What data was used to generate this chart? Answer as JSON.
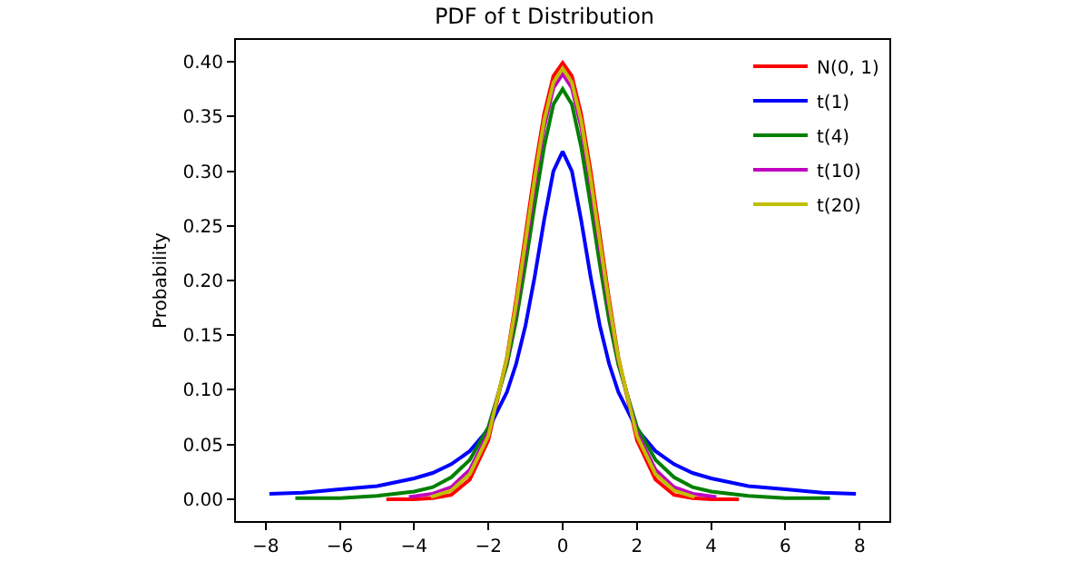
{
  "chart_data": {
    "type": "line",
    "title": "PDF of t Distribution",
    "ylabel": "Probability",
    "xlim": [
      -8.8,
      8.8
    ],
    "xticks": [
      {
        "value": -8,
        "label": "−8"
      },
      {
        "value": -6,
        "label": "−6"
      },
      {
        "value": -4,
        "label": "−4"
      },
      {
        "value": -2,
        "label": "−2"
      },
      0,
      2,
      4,
      6,
      8
    ],
    "ylim": [
      -0.02,
      0.42
    ],
    "yticks": [
      {
        "value": 0,
        "label": "0.00"
      },
      {
        "value": 0.05,
        "label": "0.05"
      },
      {
        "value": 0.1,
        "label": "0.10"
      },
      {
        "value": 0.15,
        "label": "0.15"
      },
      {
        "value": 0.2,
        "label": "0.20"
      },
      {
        "value": 0.25,
        "label": "0.25"
      },
      {
        "value": 0.3,
        "label": "0.30"
      },
      {
        "value": 0.35,
        "label": "0.35"
      },
      {
        "value": 0.4,
        "label": "0.40"
      }
    ],
    "grid": false,
    "legend": "top right",
    "marker": "none",
    "line_style": "solid",
    "series": [
      {
        "name": "N(0, 1)",
        "color": "#ff0000",
        "x": [
          -4.75,
          -4,
          -3.5,
          -3,
          -2.5,
          -2,
          -1.5,
          -1.25,
          -1,
          -0.75,
          -0.5,
          -0.25,
          0,
          0.25,
          0.5,
          0.75,
          1,
          1.25,
          1.5,
          2,
          2.5,
          3,
          3.5,
          4,
          4.75
        ],
        "values": [
          0,
          0,
          0.001,
          0.004,
          0.018,
          0.054,
          0.13,
          0.183,
          0.242,
          0.301,
          0.352,
          0.387,
          0.399,
          0.387,
          0.352,
          0.301,
          0.242,
          0.183,
          0.13,
          0.054,
          0.018,
          0.004,
          0.001,
          0,
          0
        ]
      },
      {
        "name": "t(1)",
        "color": "#0000ff",
        "x": [
          -7.9,
          -7,
          -6,
          -5,
          -4,
          -3.5,
          -3,
          -2.5,
          -2,
          -1.5,
          -1.25,
          -1,
          -0.75,
          -0.5,
          -0.25,
          0,
          0.25,
          0.5,
          0.75,
          1,
          1.25,
          1.5,
          2,
          2.5,
          3,
          3.5,
          4,
          5,
          6,
          7,
          7.9
        ],
        "values": [
          0.005,
          0.006,
          0.009,
          0.012,
          0.019,
          0.024,
          0.032,
          0.044,
          0.064,
          0.098,
          0.124,
          0.159,
          0.204,
          0.255,
          0.3,
          0.318,
          0.3,
          0.255,
          0.204,
          0.159,
          0.124,
          0.098,
          0.064,
          0.044,
          0.032,
          0.024,
          0.019,
          0.012,
          0.009,
          0.006,
          0.005
        ]
      },
      {
        "name": "t(4)",
        "color": "#008000",
        "x": [
          -7.2,
          -6,
          -5,
          -4,
          -3.5,
          -3,
          -2.5,
          -2,
          -1.5,
          -1.25,
          -1,
          -0.75,
          -0.5,
          -0.25,
          0,
          0.25,
          0.5,
          0.75,
          1,
          1.25,
          1.5,
          2,
          2.5,
          3,
          3.5,
          4,
          5,
          6,
          7.2
        ],
        "values": [
          0.001,
          0.001,
          0.003,
          0.007,
          0.011,
          0.02,
          0.036,
          0.066,
          0.123,
          0.164,
          0.215,
          0.27,
          0.322,
          0.361,
          0.375,
          0.361,
          0.322,
          0.27,
          0.215,
          0.164,
          0.123,
          0.066,
          0.036,
          0.02,
          0.011,
          0.007,
          0.003,
          0.001,
          0.001
        ]
      },
      {
        "name": "t(10)",
        "color": "#bf00bf",
        "x": [
          -4.14,
          -3.5,
          -3,
          -2.5,
          -2,
          -1.5,
          -1.25,
          -1,
          -0.75,
          -0.5,
          -0.25,
          0,
          0.25,
          0.5,
          0.75,
          1,
          1.25,
          1.5,
          2,
          2.5,
          3,
          3.5,
          4.14
        ],
        "values": [
          0.002,
          0.005,
          0.011,
          0.027,
          0.061,
          0.127,
          0.175,
          0.23,
          0.288,
          0.34,
          0.376,
          0.389,
          0.376,
          0.34,
          0.288,
          0.23,
          0.175,
          0.127,
          0.061,
          0.027,
          0.011,
          0.005,
          0.002
        ]
      },
      {
        "name": "t(20)",
        "color": "#bfbf00",
        "x": [
          -3.55,
          -3,
          -2.5,
          -2,
          -1.5,
          -1.25,
          -1,
          -0.75,
          -0.5,
          -0.25,
          0,
          0.25,
          0.5,
          0.75,
          1,
          1.25,
          1.5,
          2,
          2.5,
          3,
          3.55
        ],
        "values": [
          0.002,
          0.008,
          0.023,
          0.058,
          0.129,
          0.179,
          0.236,
          0.294,
          0.346,
          0.381,
          0.394,
          0.381,
          0.346,
          0.294,
          0.236,
          0.179,
          0.129,
          0.058,
          0.023,
          0.008,
          0.002
        ]
      }
    ]
  }
}
